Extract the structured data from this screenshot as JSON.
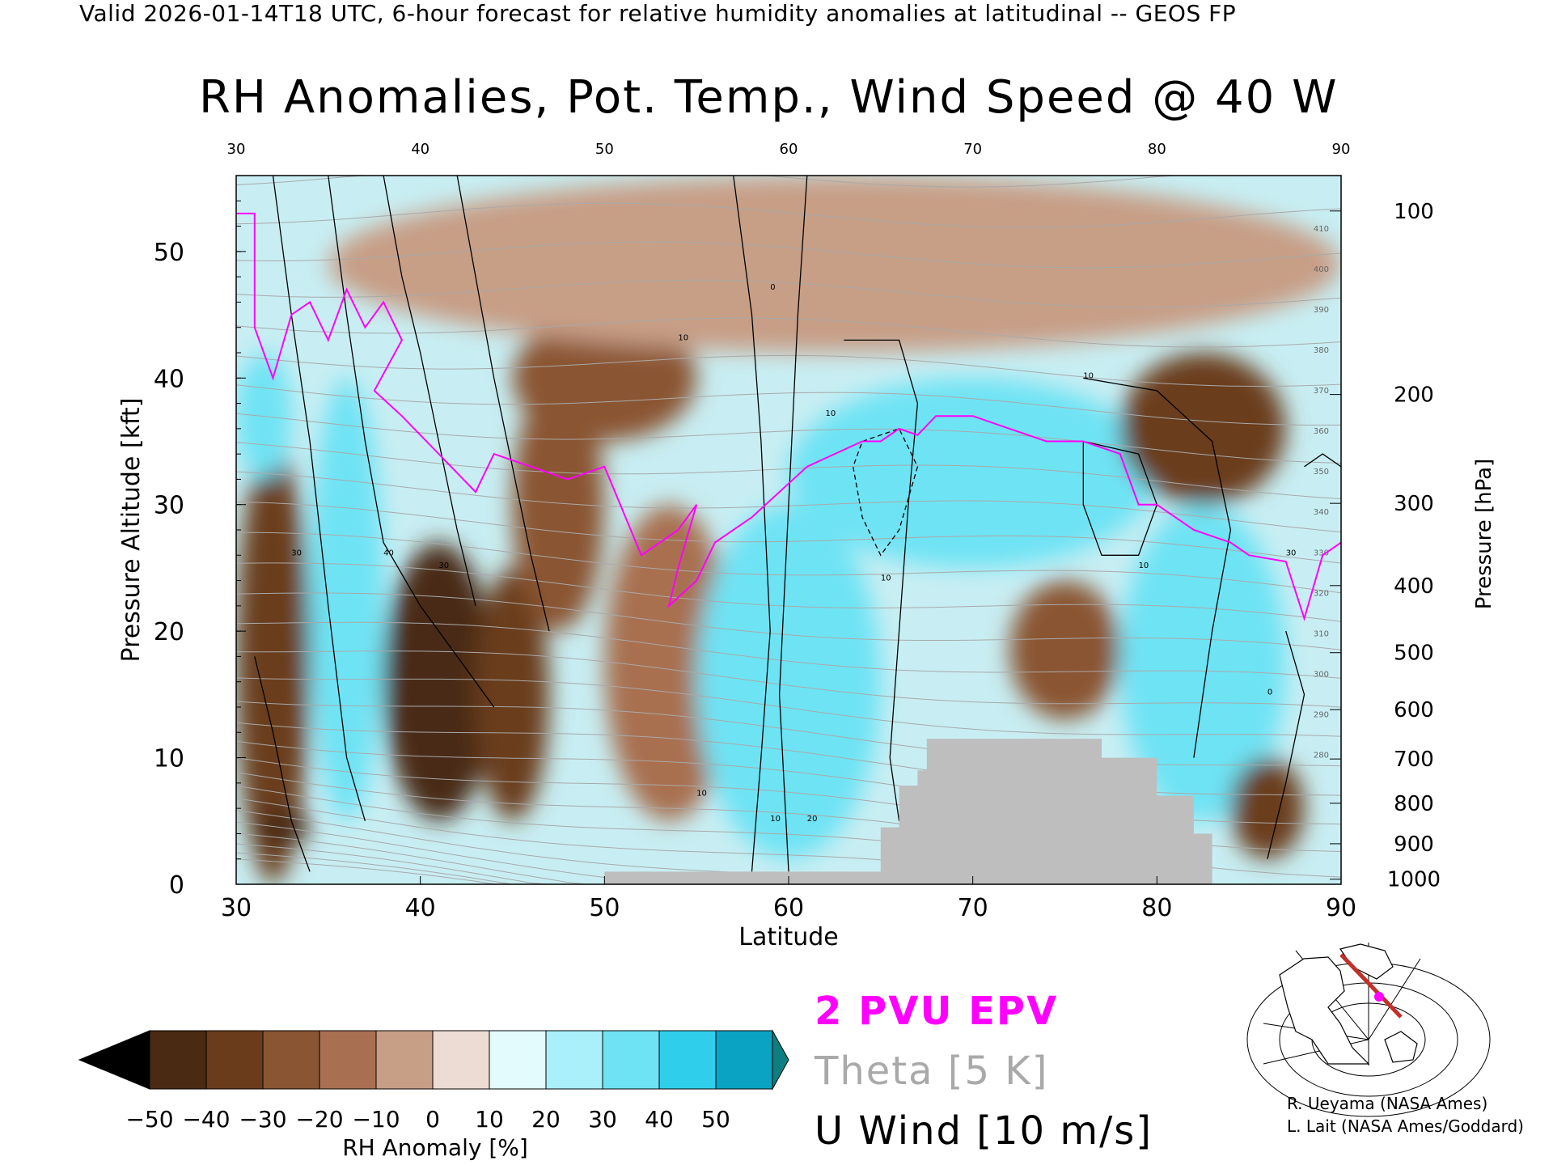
{
  "header": {
    "valid_text": "Valid 2026-01-14T18 UTC, 6-hour forecast for relative humidity anomalies at latitudinal -- GEOS FP",
    "title": "RH Anomalies, Pot. Temp., Wind Speed @ 40 W"
  },
  "colors": {
    "epv": "#ff00ff",
    "theta": "#a9a9a9",
    "wind": "#000000",
    "topography": "#bebebe"
  },
  "chart_data": {
    "type": "heatmap",
    "title": "RH Anomalies, Pot. Temp., Wind Speed @ 40 W",
    "xlabel": "Latitude",
    "ylabel_left": "Pressure Altitude [kft]",
    "ylabel_right": "Pressure [hPa]",
    "xlim": [
      30,
      90
    ],
    "ylim_kft": [
      0,
      56
    ],
    "x_ticks": [
      "30",
      "40",
      "50",
      "60",
      "70",
      "80",
      "90"
    ],
    "top_x_ticks": [
      "30",
      "40",
      "50",
      "60",
      "70",
      "80",
      "90"
    ],
    "y_ticks_kft": [
      "0",
      "10",
      "20",
      "30",
      "40",
      "50"
    ],
    "y_ticks_values_kft": [
      0,
      10,
      20,
      30,
      40,
      50
    ],
    "pressure_ticks": [
      {
        "label": "100",
        "kft": 53.2
      },
      {
        "label": "200",
        "kft": 38.7
      },
      {
        "label": "300",
        "kft": 30.1
      },
      {
        "label": "400",
        "kft": 23.6
      },
      {
        "label": "500",
        "kft": 18.3
      },
      {
        "label": "600",
        "kft": 13.8
      },
      {
        "label": "700",
        "kft": 9.9
      },
      {
        "label": "800",
        "kft": 6.4
      },
      {
        "label": "900",
        "kft": 3.2
      },
      {
        "label": "1000",
        "kft": 0.4
      }
    ],
    "colorbar": {
      "label": "RH Anomaly [%]",
      "ticks": [
        "−50",
        "−40",
        "−30",
        "−20",
        "−10",
        "0",
        "10",
        "20",
        "30",
        "40",
        "50"
      ],
      "colors": [
        "#000000",
        "#4a2a12",
        "#6b3c1c",
        "#8a5532",
        "#a87050",
        "#c79e86",
        "#ecdcd3",
        "#e4fbfd",
        "#a9f0fa",
        "#6ee3f4",
        "#2fcfec",
        "#0aa3c4",
        "#0d7f80"
      ]
    },
    "rh_anomaly_regions": [
      {
        "lat": [
          30,
          34
        ],
        "kft": [
          0,
          35
        ],
        "rh": -35
      },
      {
        "lat": [
          31,
          34
        ],
        "kft": [
          3,
          6
        ],
        "rh": -50
      },
      {
        "lat": [
          30,
          33
        ],
        "kft": [
          32,
          42
        ],
        "rh": 30
      },
      {
        "lat": [
          34,
          38
        ],
        "kft": [
          5,
          40
        ],
        "rh": 35
      },
      {
        "lat": [
          38,
          44
        ],
        "kft": [
          5,
          27
        ],
        "rh": -50
      },
      {
        "lat": [
          43,
          47
        ],
        "kft": [
          5,
          25
        ],
        "rh": -35
      },
      {
        "lat": [
          45,
          50
        ],
        "kft": [
          20,
          40
        ],
        "rh": -25
      },
      {
        "lat": [
          45,
          55
        ],
        "kft": [
          35,
          45
        ],
        "rh": -30
      },
      {
        "lat": [
          50,
          57
        ],
        "kft": [
          5,
          30
        ],
        "rh": -15
      },
      {
        "lat": [
          55,
          65
        ],
        "kft": [
          2,
          30
        ],
        "rh": 35
      },
      {
        "lat": [
          60,
          80
        ],
        "kft": [
          25,
          40
        ],
        "rh": 30
      },
      {
        "lat": [
          72,
          78
        ],
        "kft": [
          13,
          24
        ],
        "rh": -30
      },
      {
        "lat": [
          78,
          87
        ],
        "kft": [
          30,
          42
        ],
        "rh": -35
      },
      {
        "lat": [
          78,
          87
        ],
        "kft": [
          5,
          30
        ],
        "rh": 35
      },
      {
        "lat": [
          84,
          88
        ],
        "kft": [
          2,
          10
        ],
        "rh": -35
      },
      {
        "lat": [
          35,
          90
        ],
        "kft": [
          42,
          56
        ],
        "rh": -10
      }
    ],
    "topography_kft": [
      {
        "lat": 50,
        "kft": 1.0
      },
      {
        "lat": 65,
        "kft": 1.0
      },
      {
        "lat": 65,
        "kft": 4.5
      },
      {
        "lat": 66,
        "kft": 4.5
      },
      {
        "lat": 66,
        "kft": 7.8
      },
      {
        "lat": 67,
        "kft": 7.8
      },
      {
        "lat": 67,
        "kft": 9.0
      },
      {
        "lat": 67.5,
        "kft": 9.0
      },
      {
        "lat": 67.5,
        "kft": 11.5
      },
      {
        "lat": 77,
        "kft": 11.5
      },
      {
        "lat": 77,
        "kft": 10.0
      },
      {
        "lat": 80,
        "kft": 10.0
      },
      {
        "lat": 80,
        "kft": 7.0
      },
      {
        "lat": 82,
        "kft": 7.0
      },
      {
        "lat": 82,
        "kft": 4.0
      },
      {
        "lat": 83,
        "kft": 4.0
      },
      {
        "lat": 83,
        "kft": 1.5
      },
      {
        "lat": 83,
        "kft": 0
      }
    ],
    "series": [
      {
        "name": "2 PVU EPV",
        "color": "#ff00ff",
        "points": [
          [
            30,
            53
          ],
          [
            31,
            53
          ],
          [
            31,
            44
          ],
          [
            31.5,
            42
          ],
          [
            32,
            40
          ],
          [
            33,
            45
          ],
          [
            34,
            46
          ],
          [
            35,
            43
          ],
          [
            36,
            47
          ],
          [
            37,
            44
          ],
          [
            38,
            46
          ],
          [
            39,
            43
          ],
          [
            37.5,
            39
          ],
          [
            39,
            37
          ],
          [
            41,
            34
          ],
          [
            43,
            31
          ],
          [
            44,
            34
          ],
          [
            46,
            33
          ],
          [
            48,
            32
          ],
          [
            50,
            33
          ],
          [
            52,
            26
          ],
          [
            54,
            28
          ],
          [
            55,
            30
          ],
          [
            54,
            25
          ],
          [
            53.5,
            22
          ],
          [
            55,
            24
          ],
          [
            56,
            27
          ],
          [
            58,
            29
          ],
          [
            61,
            33
          ],
          [
            64,
            35
          ],
          [
            65,
            35
          ],
          [
            66,
            36
          ],
          [
            67,
            35.5
          ],
          [
            68,
            37
          ],
          [
            70,
            37
          ],
          [
            72,
            36
          ],
          [
            74,
            35
          ],
          [
            76,
            35
          ],
          [
            78,
            34
          ],
          [
            79,
            30
          ],
          [
            80,
            30
          ],
          [
            82,
            28
          ],
          [
            84,
            27
          ],
          [
            85,
            26
          ],
          [
            87,
            25.5
          ],
          [
            88,
            21
          ],
          [
            89,
            26
          ],
          [
            90,
            27
          ]
        ]
      },
      {
        "name": "Theta [5 K]",
        "color": "#a9a9a9",
        "levels": [
          "280",
          "290",
          "300",
          "310",
          "320",
          "330",
          "340",
          "350",
          "360",
          "370",
          "380",
          "390",
          "400",
          "410"
        ]
      },
      {
        "name": "U Wind [10 m/s]",
        "color": "#000000",
        "contour_labels": [
          "30",
          "40",
          "30",
          "10",
          "10",
          "0",
          "10",
          "10",
          "10",
          "10",
          "0",
          "30",
          "10",
          "20"
        ]
      }
    ],
    "legend_entries": [
      "2 PVU EPV",
      "Theta [5 K]",
      "U Wind [10 m/s]"
    ]
  },
  "credits": {
    "line1": "R. Ueyama (NASA Ames)",
    "line2": "L. Lait (NASA Ames/Goddard)"
  },
  "locator_map": {
    "section_line_color": "#c0312a",
    "marker_color": "#ff00ff"
  }
}
